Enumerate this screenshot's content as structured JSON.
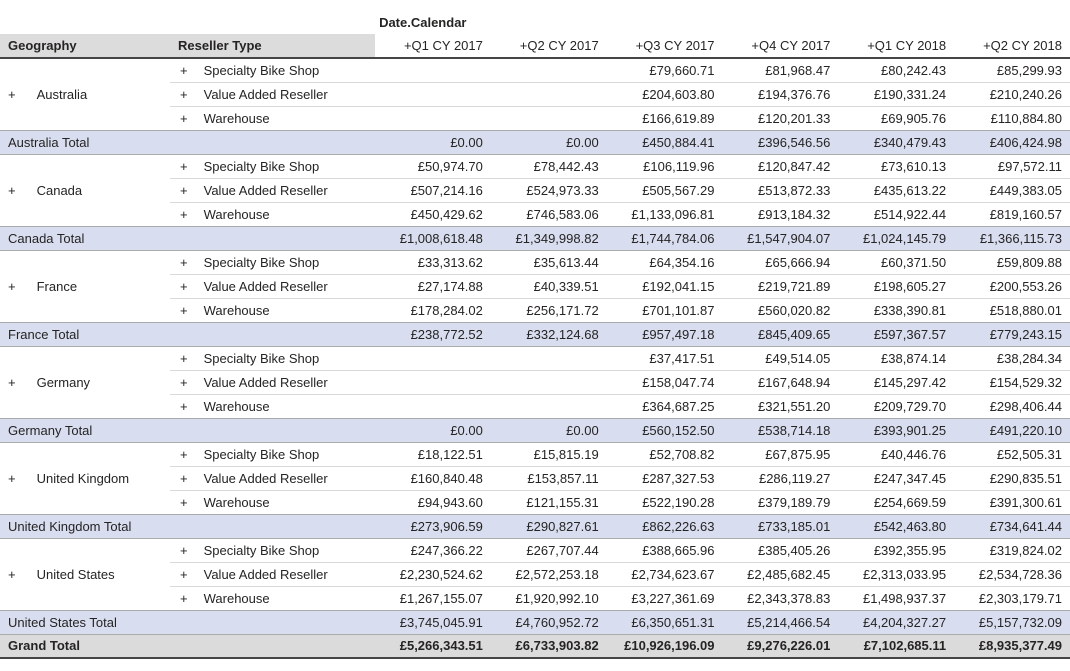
{
  "colors": {
    "subtotal_bg": "#D9DDF0",
    "left_header_bg": "#DCDCDC",
    "dimension_bg": "#E3E3E3",
    "grand_total_bg": "#DBDBDB",
    "text": "#252423",
    "inner_divider": "#D9D9D9",
    "total_border": "#ABABAB",
    "strong_border": "#454545"
  },
  "chart_data": {
    "type": "table",
    "dimension_label": "Date.Calendar",
    "row_headers": {
      "geography": "Geography",
      "reseller": "Reseller Type"
    },
    "expand_symbol": "+",
    "columns": [
      "+Q1 CY 2017",
      "+Q2 CY 2017",
      "+Q3 CY 2017",
      "+Q4 CY 2017",
      "+Q1 CY 2018",
      "+Q2 CY 2018"
    ],
    "groups": [
      {
        "geography": "Australia",
        "rows": [
          {
            "type": "Specialty Bike Shop",
            "values": [
              "",
              "",
              "£79,660.71",
              "£81,968.47",
              "£80,242.43",
              "£85,299.93"
            ]
          },
          {
            "type": "Value Added Reseller",
            "values": [
              "",
              "",
              "£204,603.80",
              "£194,376.76",
              "£190,331.24",
              "£210,240.26"
            ]
          },
          {
            "type": "Warehouse",
            "values": [
              "",
              "",
              "£166,619.89",
              "£120,201.33",
              "£69,905.76",
              "£110,884.80"
            ]
          }
        ],
        "total_label": "Australia Total",
        "total_values": [
          "£0.00",
          "£0.00",
          "£450,884.41",
          "£396,546.56",
          "£340,479.43",
          "£406,424.98"
        ]
      },
      {
        "geography": "Canada",
        "rows": [
          {
            "type": "Specialty Bike Shop",
            "values": [
              "£50,974.70",
              "£78,442.43",
              "£106,119.96",
              "£120,847.42",
              "£73,610.13",
              "£97,572.11"
            ]
          },
          {
            "type": "Value Added Reseller",
            "values": [
              "£507,214.16",
              "£524,973.33",
              "£505,567.29",
              "£513,872.33",
              "£435,613.22",
              "£449,383.05"
            ]
          },
          {
            "type": "Warehouse",
            "values": [
              "£450,429.62",
              "£746,583.06",
              "£1,133,096.81",
              "£913,184.32",
              "£514,922.44",
              "£819,160.57"
            ]
          }
        ],
        "total_label": "Canada Total",
        "total_values": [
          "£1,008,618.48",
          "£1,349,998.82",
          "£1,744,784.06",
          "£1,547,904.07",
          "£1,024,145.79",
          "£1,366,115.73"
        ]
      },
      {
        "geography": "France",
        "rows": [
          {
            "type": "Specialty Bike Shop",
            "values": [
              "£33,313.62",
              "£35,613.44",
              "£64,354.16",
              "£65,666.94",
              "£60,371.50",
              "£59,809.88"
            ]
          },
          {
            "type": "Value Added Reseller",
            "values": [
              "£27,174.88",
              "£40,339.51",
              "£192,041.15",
              "£219,721.89",
              "£198,605.27",
              "£200,553.26"
            ]
          },
          {
            "type": "Warehouse",
            "values": [
              "£178,284.02",
              "£256,171.72",
              "£701,101.87",
              "£560,020.82",
              "£338,390.81",
              "£518,880.01"
            ]
          }
        ],
        "total_label": "France Total",
        "total_values": [
          "£238,772.52",
          "£332,124.68",
          "£957,497.18",
          "£845,409.65",
          "£597,367.57",
          "£779,243.15"
        ]
      },
      {
        "geography": "Germany",
        "rows": [
          {
            "type": "Specialty Bike Shop",
            "values": [
              "",
              "",
              "£37,417.51",
              "£49,514.05",
              "£38,874.14",
              "£38,284.34"
            ]
          },
          {
            "type": "Value Added Reseller",
            "values": [
              "",
              "",
              "£158,047.74",
              "£167,648.94",
              "£145,297.42",
              "£154,529.32"
            ]
          },
          {
            "type": "Warehouse",
            "values": [
              "",
              "",
              "£364,687.25",
              "£321,551.20",
              "£209,729.70",
              "£298,406.44"
            ]
          }
        ],
        "total_label": "Germany Total",
        "total_values": [
          "£0.00",
          "£0.00",
          "£560,152.50",
          "£538,714.18",
          "£393,901.25",
          "£491,220.10"
        ]
      },
      {
        "geography": "United Kingdom",
        "rows": [
          {
            "type": "Specialty Bike Shop",
            "values": [
              "£18,122.51",
              "£15,815.19",
              "£52,708.82",
              "£67,875.95",
              "£40,446.76",
              "£52,505.31"
            ]
          },
          {
            "type": "Value Added Reseller",
            "values": [
              "£160,840.48",
              "£153,857.11",
              "£287,327.53",
              "£286,119.27",
              "£247,347.45",
              "£290,835.51"
            ]
          },
          {
            "type": "Warehouse",
            "values": [
              "£94,943.60",
              "£121,155.31",
              "£522,190.28",
              "£379,189.79",
              "£254,669.59",
              "£391,300.61"
            ]
          }
        ],
        "total_label": "United Kingdom Total",
        "total_values": [
          "£273,906.59",
          "£290,827.61",
          "£862,226.63",
          "£733,185.01",
          "£542,463.80",
          "£734,641.44"
        ]
      },
      {
        "geography": "United States",
        "rows": [
          {
            "type": "Specialty Bike Shop",
            "values": [
              "£247,366.22",
              "£267,707.44",
              "£388,665.96",
              "£385,405.26",
              "£392,355.95",
              "£319,824.02"
            ]
          },
          {
            "type": "Value Added Reseller",
            "values": [
              "£2,230,524.62",
              "£2,572,253.18",
              "£2,734,623.67",
              "£2,485,682.45",
              "£2,313,033.95",
              "£2,534,728.36"
            ]
          },
          {
            "type": "Warehouse",
            "values": [
              "£1,267,155.07",
              "£1,920,992.10",
              "£3,227,361.69",
              "£2,343,378.83",
              "£1,498,937.37",
              "£2,303,179.71"
            ]
          }
        ],
        "total_label": "United States Total",
        "total_values": [
          "£3,745,045.91",
          "£4,760,952.72",
          "£6,350,651.31",
          "£5,214,466.54",
          "£4,204,327.27",
          "£5,157,732.09"
        ]
      }
    ],
    "grand_total": {
      "label": "Grand Total",
      "values": [
        "£5,266,343.51",
        "£6,733,903.82",
        "£10,926,196.09",
        "£9,276,226.01",
        "£7,102,685.11",
        "£8,935,377.49"
      ]
    }
  }
}
